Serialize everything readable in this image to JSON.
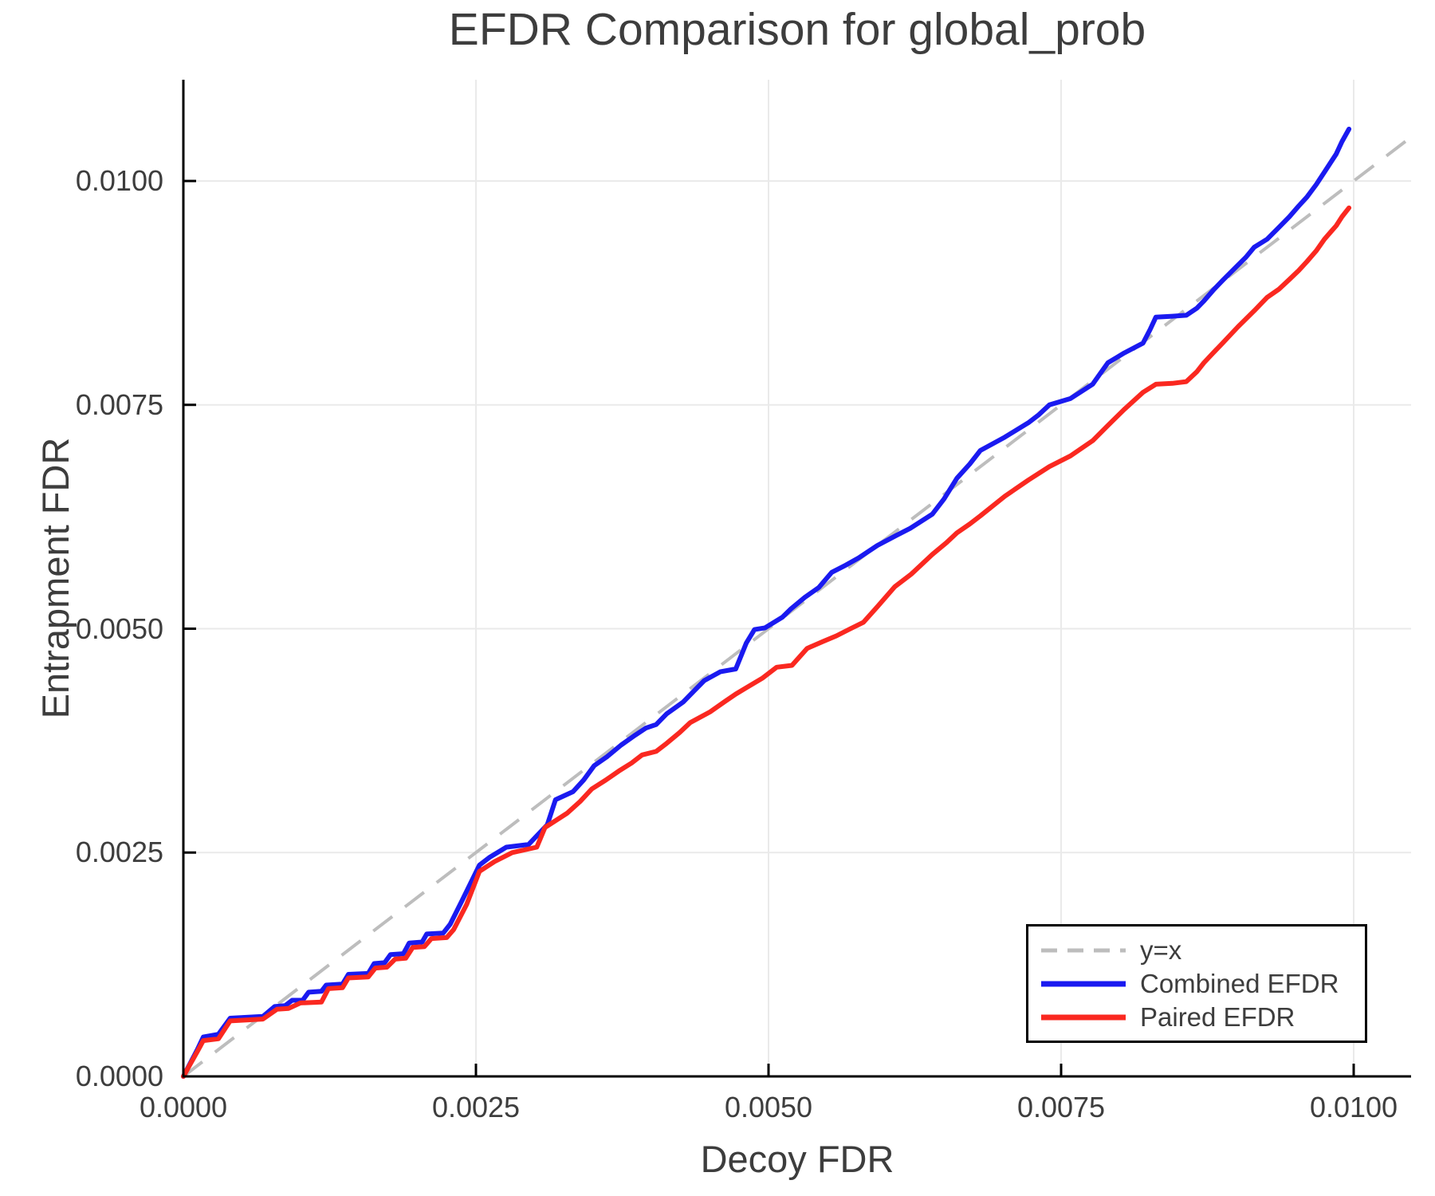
{
  "figure": {
    "title": "EFDR Comparison for global_prob",
    "xlabel": "Decoy FDR",
    "ylabel": "Entrapment FDR"
  },
  "colors": {
    "background": "#ffffff",
    "grid": "#eaeaea",
    "spine": "#000000",
    "text": "#3d3d3d",
    "identity_line": "#bdbdbd",
    "combined": "#1a1af0",
    "paired": "#fa2820"
  },
  "legend": {
    "position": "bottom-right",
    "items": [
      {
        "label": "y=x",
        "color": "#bdbdbd",
        "style": "dashed"
      },
      {
        "label": "Combined EFDR",
        "color": "#1a1af0",
        "style": "solid"
      },
      {
        "label": "Paired EFDR",
        "color": "#fa2820",
        "style": "solid"
      }
    ]
  },
  "chart_data": {
    "type": "line",
    "title": "EFDR Comparison for global_prob",
    "xlabel": "Decoy FDR",
    "ylabel": "Entrapment FDR",
    "xlim": [
      0,
      0.0105
    ],
    "ylim": [
      0,
      0.0112
    ],
    "grid": true,
    "legend_position": "bottom-right",
    "x_ticks": [
      0,
      0.0025,
      0.005,
      0.0075,
      0.01
    ],
    "x_tick_labels": [
      "0.0000",
      "0.0025",
      "0.0050",
      "0.0075",
      "0.0100"
    ],
    "y_ticks": [
      0,
      0.0025,
      0.005,
      0.0075,
      0.01
    ],
    "y_tick_labels": [
      "0.0000",
      "0.0025",
      "0.0050",
      "0.0075",
      "0.0100"
    ],
    "reference_line": {
      "label": "y=x",
      "from": [
        0,
        0
      ],
      "to": [
        0.0105,
        0.0105
      ],
      "style": "dashed",
      "color": "#bdbdbd"
    },
    "series": [
      {
        "name": "Combined EFDR",
        "color": "#1a1af0",
        "points": [
          [
            0.0,
            0.0
          ],
          [
            0.00012,
            0.0003
          ],
          [
            0.00017,
            0.00044
          ],
          [
            0.0003,
            0.00047
          ],
          [
            0.0004,
            0.00065
          ],
          [
            0.00068,
            0.00067
          ],
          [
            0.00078,
            0.00078
          ],
          [
            0.00087,
            0.00079
          ],
          [
            0.00093,
            0.00085
          ],
          [
            0.00102,
            0.00085
          ],
          [
            0.00107,
            0.00094
          ],
          [
            0.00118,
            0.00095
          ],
          [
            0.00122,
            0.00102
          ],
          [
            0.00136,
            0.00103
          ],
          [
            0.00141,
            0.00114
          ],
          [
            0.00158,
            0.00115
          ],
          [
            0.00163,
            0.00126
          ],
          [
            0.00172,
            0.00127
          ],
          [
            0.00177,
            0.00136
          ],
          [
            0.00188,
            0.00137
          ],
          [
            0.00193,
            0.00149
          ],
          [
            0.00204,
            0.0015
          ],
          [
            0.00208,
            0.00159
          ],
          [
            0.00222,
            0.0016
          ],
          [
            0.00228,
            0.0017
          ],
          [
            0.00238,
            0.00196
          ],
          [
            0.00253,
            0.00236
          ],
          [
            0.00262,
            0.00245
          ],
          [
            0.00276,
            0.00256
          ],
          [
            0.00295,
            0.00259
          ],
          [
            0.00311,
            0.00281
          ],
          [
            0.00318,
            0.00309
          ],
          [
            0.00333,
            0.00318
          ],
          [
            0.00342,
            0.00331
          ],
          [
            0.00351,
            0.00347
          ],
          [
            0.00362,
            0.00357
          ],
          [
            0.00374,
            0.0037
          ],
          [
            0.00386,
            0.00381
          ],
          [
            0.00395,
            0.00389
          ],
          [
            0.00404,
            0.00393
          ],
          [
            0.00413,
            0.00405
          ],
          [
            0.00427,
            0.00418
          ],
          [
            0.00436,
            0.0043
          ],
          [
            0.00445,
            0.00442
          ],
          [
            0.00459,
            0.00452
          ],
          [
            0.00472,
            0.00455
          ],
          [
            0.00481,
            0.00484
          ],
          [
            0.00488,
            0.00499
          ],
          [
            0.00497,
            0.00501
          ],
          [
            0.00512,
            0.00513
          ],
          [
            0.00519,
            0.00522
          ],
          [
            0.00531,
            0.00535
          ],
          [
            0.00543,
            0.00546
          ],
          [
            0.00554,
            0.00563
          ],
          [
            0.00566,
            0.00571
          ],
          [
            0.00577,
            0.00579
          ],
          [
            0.00593,
            0.00593
          ],
          [
            0.00609,
            0.00604
          ],
          [
            0.00621,
            0.00612
          ],
          [
            0.0064,
            0.00628
          ],
          [
            0.0065,
            0.00645
          ],
          [
            0.00661,
            0.00668
          ],
          [
            0.00672,
            0.00684
          ],
          [
            0.00681,
            0.00699
          ],
          [
            0.00702,
            0.00714
          ],
          [
            0.00722,
            0.0073
          ],
          [
            0.00731,
            0.00739
          ],
          [
            0.0074,
            0.0075
          ],
          [
            0.00758,
            0.00757
          ],
          [
            0.00777,
            0.00773
          ],
          [
            0.00784,
            0.00786
          ],
          [
            0.0079,
            0.00797
          ],
          [
            0.00804,
            0.00808
          ],
          [
            0.0082,
            0.00819
          ],
          [
            0.00826,
            0.00834
          ],
          [
            0.00831,
            0.00848
          ],
          [
            0.00845,
            0.00849
          ],
          [
            0.00857,
            0.0085
          ],
          [
            0.00866,
            0.00858
          ],
          [
            0.00872,
            0.00866
          ],
          [
            0.0088,
            0.00878
          ],
          [
            0.00888,
            0.00889
          ],
          [
            0.00901,
            0.00906
          ],
          [
            0.00908,
            0.00915
          ],
          [
            0.00915,
            0.00926
          ],
          [
            0.00926,
            0.00935
          ],
          [
            0.00936,
            0.00948
          ],
          [
            0.00945,
            0.0096
          ],
          [
            0.00953,
            0.00972
          ],
          [
            0.0096,
            0.00982
          ],
          [
            0.00968,
            0.00996
          ],
          [
            0.00975,
            0.0101
          ],
          [
            0.00981,
            0.01022
          ],
          [
            0.00985,
            0.0103
          ],
          [
            0.0099,
            0.01044
          ],
          [
            0.00996,
            0.01058
          ]
        ]
      },
      {
        "name": "Paired EFDR",
        "color": "#fa2820",
        "points": [
          [
            0.0,
            0.0
          ],
          [
            0.00012,
            0.00028
          ],
          [
            0.00017,
            0.0004
          ],
          [
            0.0003,
            0.00042
          ],
          [
            0.0004,
            0.00062
          ],
          [
            0.00068,
            0.00064
          ],
          [
            0.0008,
            0.00075
          ],
          [
            0.0009,
            0.00076
          ],
          [
            0.001,
            0.00082
          ],
          [
            0.00118,
            0.00083
          ],
          [
            0.00124,
            0.00098
          ],
          [
            0.00136,
            0.00099
          ],
          [
            0.00141,
            0.0011
          ],
          [
            0.00158,
            0.00111
          ],
          [
            0.00164,
            0.00121
          ],
          [
            0.00174,
            0.00122
          ],
          [
            0.00181,
            0.00131
          ],
          [
            0.0019,
            0.00132
          ],
          [
            0.00196,
            0.00144
          ],
          [
            0.00206,
            0.00145
          ],
          [
            0.00212,
            0.00154
          ],
          [
            0.00225,
            0.00155
          ],
          [
            0.00231,
            0.00164
          ],
          [
            0.00242,
            0.00192
          ],
          [
            0.00253,
            0.00229
          ],
          [
            0.00266,
            0.0024
          ],
          [
            0.00281,
            0.0025
          ],
          [
            0.00302,
            0.00256
          ],
          [
            0.00309,
            0.00278
          ],
          [
            0.00328,
            0.00294
          ],
          [
            0.00339,
            0.00307
          ],
          [
            0.00349,
            0.00321
          ],
          [
            0.00361,
            0.00331
          ],
          [
            0.00372,
            0.00341
          ],
          [
            0.00383,
            0.0035
          ],
          [
            0.00392,
            0.00359
          ],
          [
            0.00404,
            0.00363
          ],
          [
            0.00413,
            0.00372
          ],
          [
            0.00424,
            0.00384
          ],
          [
            0.00433,
            0.00395
          ],
          [
            0.0045,
            0.00407
          ],
          [
            0.00463,
            0.00419
          ],
          [
            0.00472,
            0.00427
          ],
          [
            0.00481,
            0.00434
          ],
          [
            0.00495,
            0.00445
          ],
          [
            0.00507,
            0.00457
          ],
          [
            0.0052,
            0.00459
          ],
          [
            0.00533,
            0.00478
          ],
          [
            0.00547,
            0.00486
          ],
          [
            0.00558,
            0.00492
          ],
          [
            0.0057,
            0.005
          ],
          [
            0.00581,
            0.00507
          ],
          [
            0.00594,
            0.00526
          ],
          [
            0.00608,
            0.00547
          ],
          [
            0.00622,
            0.00561
          ],
          [
            0.0064,
            0.00583
          ],
          [
            0.00652,
            0.00596
          ],
          [
            0.00661,
            0.00607
          ],
          [
            0.00672,
            0.00617
          ],
          [
            0.00681,
            0.00626
          ],
          [
            0.00702,
            0.00648
          ],
          [
            0.00722,
            0.00666
          ],
          [
            0.0074,
            0.00681
          ],
          [
            0.00758,
            0.00693
          ],
          [
            0.00777,
            0.0071
          ],
          [
            0.0079,
            0.00727
          ],
          [
            0.00804,
            0.00745
          ],
          [
            0.0082,
            0.00764
          ],
          [
            0.00831,
            0.00773
          ],
          [
            0.00845,
            0.00774
          ],
          [
            0.00857,
            0.00776
          ],
          [
            0.00866,
            0.00787
          ],
          [
            0.00872,
            0.00797
          ],
          [
            0.0088,
            0.00808
          ],
          [
            0.00888,
            0.00819
          ],
          [
            0.00901,
            0.00837
          ],
          [
            0.00915,
            0.00855
          ],
          [
            0.00926,
            0.0087
          ],
          [
            0.00936,
            0.00879
          ],
          [
            0.00945,
            0.0089
          ],
          [
            0.00953,
            0.009
          ],
          [
            0.0096,
            0.0091
          ],
          [
            0.00968,
            0.00922
          ],
          [
            0.00975,
            0.00935
          ],
          [
            0.00981,
            0.00944
          ],
          [
            0.00985,
            0.0095
          ],
          [
            0.0099,
            0.0096
          ],
          [
            0.00996,
            0.0097
          ]
        ]
      }
    ]
  }
}
